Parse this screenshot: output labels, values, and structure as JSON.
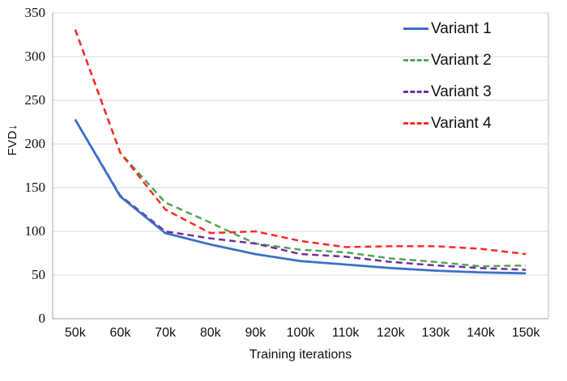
{
  "chart_data": {
    "type": "line",
    "title": "",
    "xlabel": "Training iterations",
    "ylabel": "FVD↓",
    "categories": [
      "50k",
      "60k",
      "70k",
      "80k",
      "90k",
      "100k",
      "110k",
      "120k",
      "130k",
      "140k",
      "150k"
    ],
    "ylim": [
      0,
      350
    ],
    "yticks": [
      0,
      50,
      100,
      150,
      200,
      250,
      300,
      350
    ],
    "grid": true,
    "legend_position": "inside-top-right",
    "series": [
      {
        "name": "Variant 1",
        "style": "solid",
        "color": "#3B71C4",
        "values": [
          228,
          140,
          98,
          85,
          74,
          66,
          62,
          58,
          55,
          53,
          52
        ]
      },
      {
        "name": "Variant 2",
        "style": "dashed",
        "color": "#53A653",
        "values": [
          331,
          190,
          133,
          110,
          86,
          79,
          76,
          69,
          65,
          60,
          61
        ]
      },
      {
        "name": "Variant 3",
        "style": "dashed",
        "color": "#7030A0",
        "values": [
          228,
          141,
          100,
          92,
          86,
          74,
          71,
          65,
          61,
          58,
          56
        ]
      },
      {
        "name": "Variant 4",
        "style": "dashed",
        "color": "#FF2A2A",
        "values": [
          331,
          190,
          125,
          98,
          100,
          89,
          82,
          83,
          83,
          80,
          74
        ]
      }
    ],
    "colors": {
      "gridline": "#D9D9D9",
      "axis_line": "#A6A6A6",
      "border_line": "#BFBFBF",
      "text": "#111111"
    }
  }
}
